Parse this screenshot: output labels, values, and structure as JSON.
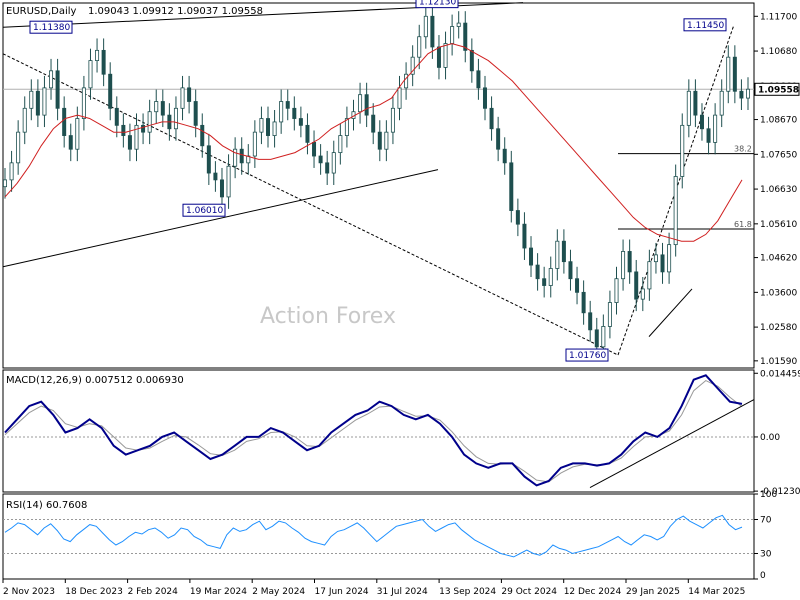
{
  "header": {
    "symbol": "EURUSD,Daily",
    "ohlc": "1.09043 1.09912 1.09037 1.09558"
  },
  "watermark": "Action Forex",
  "chart_data": [
    {
      "type": "candlestick",
      "name": "price",
      "ylim": [
        1.0138,
        1.1209
      ],
      "y_ticks": [
        "1.11700",
        "1.10680",
        "1.09660",
        "1.08670",
        "1.07650",
        "1.06630",
        "1.05610",
        "1.04620",
        "1.03600",
        "1.02580",
        "1.01590"
      ],
      "current_price": "1.09558",
      "x_ticks": [
        "2 Nov 2023",
        "18 Dec 2023",
        "2 Feb 2024",
        "19 Mar 2024",
        "2 May 2024",
        "17 Jun 2024",
        "31 Jul 2024",
        "13 Sep 2024",
        "29 Oct 2024",
        "12 Dec 2024",
        "29 Jan 2025",
        "14 Mar 2025"
      ],
      "annotations": [
        {
          "label": "1.11380",
          "value": 1.1138
        },
        {
          "label": "1.12130",
          "value": 1.1213
        },
        {
          "label": "1.06010",
          "value": 1.0601
        },
        {
          "label": "1.01760",
          "value": 1.0176
        },
        {
          "label": "1.11450",
          "value": 1.1145
        }
      ],
      "fib_levels": [
        {
          "label": "38.2",
          "value": 1.0767
        },
        {
          "label": "61.8",
          "value": 1.0546
        }
      ],
      "close_series": [
        1.069,
        1.074,
        1.083,
        1.09,
        1.095,
        1.088,
        1.096,
        1.101,
        1.09,
        1.082,
        1.078,
        1.087,
        1.096,
        1.104,
        1.107,
        1.1,
        1.09,
        1.085,
        1.082,
        1.078,
        1.085,
        1.083,
        1.089,
        1.092,
        1.088,
        1.084,
        1.09,
        1.096,
        1.092,
        1.085,
        1.079,
        1.071,
        1.069,
        1.064,
        1.073,
        1.078,
        1.074,
        1.076,
        1.083,
        1.087,
        1.082,
        1.086,
        1.092,
        1.09,
        1.087,
        1.085,
        1.08,
        1.076,
        1.074,
        1.071,
        1.077,
        1.082,
        1.087,
        1.089,
        1.094,
        1.088,
        1.083,
        1.078,
        1.083,
        1.09,
        1.096,
        1.1,
        1.105,
        1.111,
        1.117,
        1.108,
        1.102,
        1.109,
        1.114,
        1.115,
        1.107,
        1.101,
        1.096,
        1.09,
        1.084,
        1.078,
        1.074,
        1.06,
        1.056,
        1.049,
        1.044,
        1.04,
        1.038,
        1.043,
        1.051,
        1.045,
        1.04,
        1.036,
        1.03,
        1.025,
        1.02,
        1.026,
        1.033,
        1.04,
        1.048,
        1.042,
        1.034,
        1.037,
        1.045,
        1.047,
        1.042,
        1.05,
        1.07,
        1.085,
        1.095,
        1.088,
        1.084,
        1.08,
        1.088,
        1.095,
        1.105,
        1.095,
        1.093,
        1.0956
      ],
      "ma_series": [
        1.064,
        1.068,
        1.073,
        1.079,
        1.084,
        1.087,
        1.088,
        1.087,
        1.085,
        1.083,
        1.083,
        1.084,
        1.085,
        1.086,
        1.086,
        1.085,
        1.084,
        1.082,
        1.079,
        1.077,
        1.076,
        1.075,
        1.075,
        1.076,
        1.077,
        1.079,
        1.081,
        1.084,
        1.086,
        1.088,
        1.09,
        1.091,
        1.093,
        1.098,
        1.102,
        1.106,
        1.108,
        1.109,
        1.108,
        1.106,
        1.104,
        1.101,
        1.098,
        1.094,
        1.09,
        1.086,
        1.082,
        1.078,
        1.074,
        1.07,
        1.066,
        1.062,
        1.058,
        1.055,
        1.053,
        1.052,
        1.051,
        1.051,
        1.053,
        1.057,
        1.063,
        1.069
      ],
      "lines": [
        {
          "style": "solid",
          "from": [
            "2 Nov 2023",
            1.1138
          ],
          "to": [
            "mid Aug 2024",
            1.121
          ]
        },
        {
          "style": "solid",
          "from": [
            "2 Nov 2023",
            1.0435
          ],
          "to": [
            "mid Sep 2024",
            1.072
          ]
        },
        {
          "style": "dashed",
          "from": [
            "2 Nov 2023",
            1.106
          ],
          "to": [
            "12 Dec 2024",
            1.0176
          ]
        },
        {
          "style": "dashed",
          "from": [
            "12 Dec 2024",
            1.0176
          ],
          "to": [
            "14 Mar 2025",
            1.1145
          ]
        },
        {
          "style": "solid",
          "from": [
            "mid Jan 2025",
            1.023
          ],
          "to": [
            "early Feb 2025",
            1.037
          ]
        }
      ]
    },
    {
      "type": "line",
      "name": "macd",
      "title": "MACD(12,26,9) 0.007512 0.006930",
      "y_ticks": [
        "0.014459",
        "0.00",
        "-0.012303"
      ],
      "ylim": [
        -0.0125,
        0.0152
      ],
      "macd_series": [
        0.001,
        0.004,
        0.007,
        0.008,
        0.005,
        0.001,
        0.002,
        0.004,
        0.002,
        -0.002,
        -0.004,
        -0.003,
        -0.002,
        0.0,
        0.001,
        -0.001,
        -0.003,
        -0.005,
        -0.004,
        -0.002,
        0.0,
        0.0,
        0.002,
        0.001,
        -0.001,
        -0.003,
        -0.002,
        0.001,
        0.003,
        0.005,
        0.006,
        0.008,
        0.007,
        0.005,
        0.004,
        0.005,
        0.003,
        0.0,
        -0.004,
        -0.006,
        -0.007,
        -0.006,
        -0.006,
        -0.009,
        -0.011,
        -0.01,
        -0.007,
        -0.006,
        -0.006,
        -0.0065,
        -0.006,
        -0.004,
        -0.001,
        0.001,
        0.0,
        0.002,
        0.007,
        0.013,
        0.014,
        0.011,
        0.008,
        0.0075
      ],
      "signal_series": [
        0.0005,
        0.003,
        0.0055,
        0.007,
        0.006,
        0.003,
        0.0022,
        0.003,
        0.0025,
        0.0,
        -0.0025,
        -0.003,
        -0.0025,
        -0.001,
        0.0003,
        0.0,
        -0.0018,
        -0.0038,
        -0.0042,
        -0.003,
        -0.001,
        -0.0004,
        0.001,
        0.0012,
        0.0,
        -0.002,
        -0.0022,
        -0.0002,
        0.0018,
        0.0038,
        0.0052,
        0.0068,
        0.007,
        0.0058,
        0.0047,
        0.0048,
        0.0038,
        0.0012,
        -0.002,
        -0.0045,
        -0.006,
        -0.0062,
        -0.006,
        -0.0078,
        -0.0098,
        -0.0102,
        -0.0082,
        -0.0068,
        -0.0062,
        -0.0063,
        -0.0061,
        -0.0048,
        -0.0022,
        0.0,
        0.0002,
        0.0014,
        0.005,
        0.0105,
        0.0128,
        0.0115,
        0.009,
        0.0069
      ]
    },
    {
      "type": "line",
      "name": "rsi",
      "title": "RSI(14) 60.7608",
      "ylim": [
        0,
        100
      ],
      "y_ticks": [
        "100",
        "70",
        "30",
        "0"
      ],
      "levels": [
        70,
        30
      ],
      "series": [
        55,
        60,
        66,
        64,
        58,
        52,
        60,
        65,
        57,
        47,
        44,
        52,
        58,
        64,
        62,
        54,
        46,
        40,
        44,
        50,
        55,
        53,
        58,
        60,
        55,
        48,
        52,
        60,
        58,
        50,
        46,
        40,
        38,
        36,
        52,
        60,
        56,
        58,
        64,
        68,
        58,
        62,
        68,
        66,
        60,
        55,
        48,
        44,
        42,
        40,
        50,
        56,
        58,
        62,
        66,
        60,
        52,
        44,
        50,
        56,
        62,
        64,
        66,
        68,
        70,
        62,
        56,
        60,
        64,
        66,
        58,
        52,
        46,
        42,
        38,
        34,
        30,
        28,
        26,
        30,
        34,
        30,
        28,
        32,
        40,
        36,
        34,
        30,
        32,
        34,
        36,
        38,
        42,
        46,
        50,
        44,
        40,
        46,
        52,
        50,
        46,
        50,
        62,
        70,
        74,
        68,
        64,
        60,
        66,
        72,
        75,
        64,
        58,
        61
      ]
    }
  ]
}
